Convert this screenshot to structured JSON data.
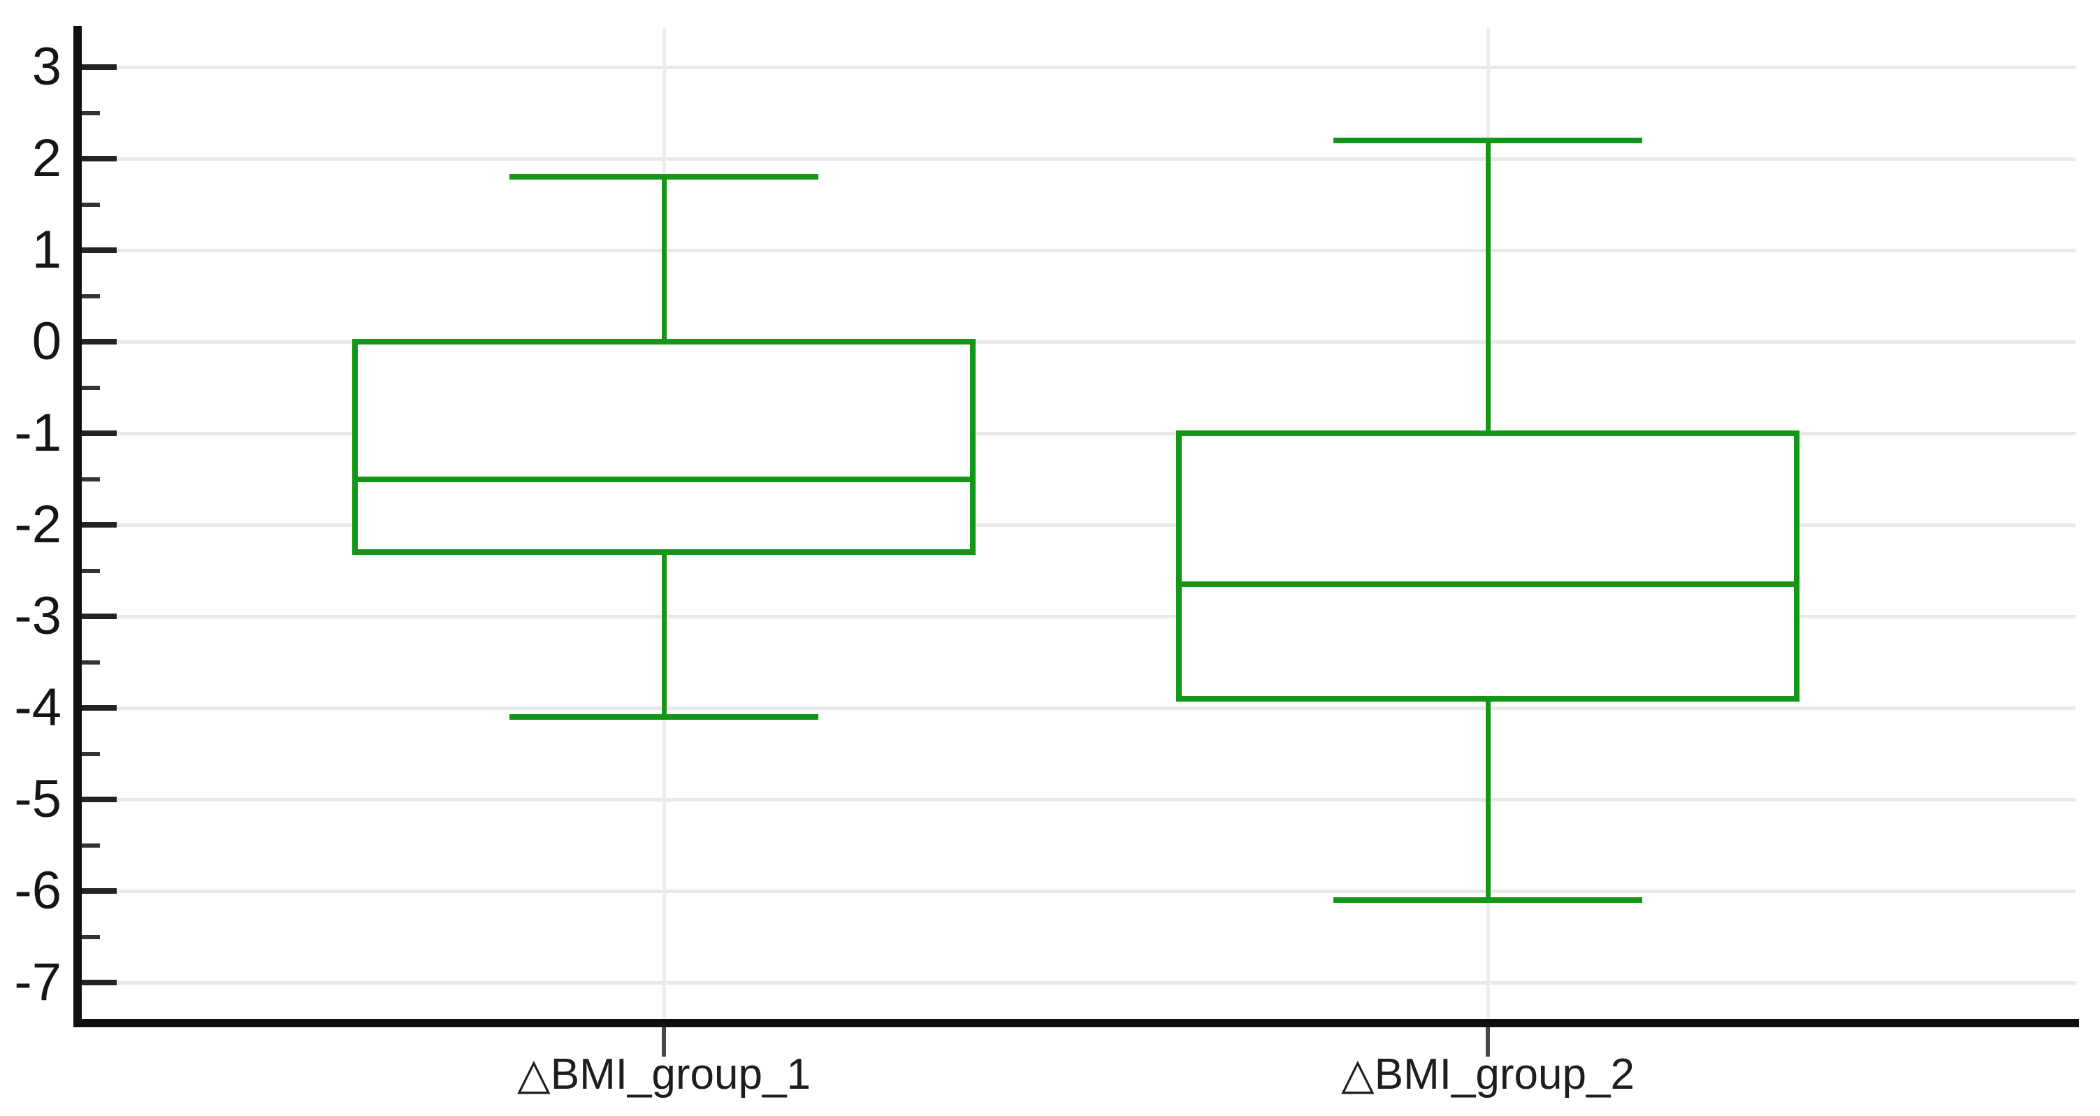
{
  "chart_data": {
    "type": "boxplot",
    "title": "",
    "orientation": "vertical",
    "categories": [
      "△BMI_group_1",
      "△BMI_group_2"
    ],
    "series": [
      {
        "name": "△BMI_group_1",
        "whisker_low": -4.1,
        "q1": -2.3,
        "median": -1.5,
        "q3": 0,
        "whisker_high": 1.8
      },
      {
        "name": "△BMI_group_2",
        "whisker_low": -6.1,
        "q1": -3.9,
        "median": -2.65,
        "q3": -1,
        "whisker_high": 2.2
      }
    ],
    "y_axis": {
      "min": -7,
      "max": 3,
      "major_step": 1,
      "minor_step": 0.5,
      "tick_labels": [
        "3",
        "2",
        "1",
        "0",
        "-1",
        "-2",
        "-3",
        "-4",
        "-5",
        "-6",
        "-7"
      ]
    },
    "x_axis": {
      "tick_labels": [
        "△BMI_group_1",
        "△BMI_group_2"
      ]
    },
    "grid": true,
    "legend": false,
    "colors": {
      "box_stroke": "#149619",
      "grid_line": "#e9e9e9",
      "axis_line": "#0f0f0f",
      "label_text": "#151515",
      "background": "#ffffff"
    }
  }
}
